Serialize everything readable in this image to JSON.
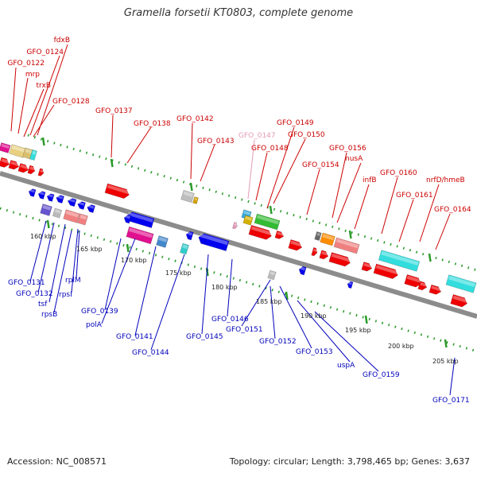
{
  "title": "Gramella forsetii KT0803, complete genome",
  "accession_label": "Accession: NC_008571",
  "topology_label": "Topology: circular; Length: 3,798,465 bp; Genes: 3,637",
  "colors": {
    "forward_label": "#cc0000",
    "reverse_label": "#0000bb",
    "backbone": "#8c8c8c",
    "ticks": "#229922"
  },
  "forward_genes": [
    "fdxB",
    "GFO_0124",
    "GFO_0122",
    "mrp",
    "trxB",
    "GFO_0128",
    "GFO_0137",
    "GFO_0138",
    "GFO_0142",
    "GFO_0143",
    "GFO_0147",
    "GFO_0149",
    "GFO_0148",
    "GFO_0150",
    "GFO_0156",
    "nusA",
    "GFO_0154",
    "infB",
    "GFO_0160",
    "nrfD/hmeB",
    "GFO_0161",
    "GFO_0164"
  ],
  "reverse_genes": [
    "GFO_0131",
    "GFO_0132",
    "tsf",
    "rpsB",
    "rpsI",
    "rplM",
    "GFO_0139",
    "polA",
    "GFO_0141",
    "GFO_0144",
    "GFO_0145",
    "GFO_0146",
    "GFO_0151",
    "GFO_0152",
    "GFO_0153",
    "uspA",
    "GFO_0159",
    "GFO_0171"
  ],
  "kbp_ticks": [
    "160 kbp",
    "165 kbp",
    "170 kbp",
    "175 kbp",
    "180 kbp",
    "185 kbp",
    "190 kbp",
    "195 kbp",
    "200 kbp",
    "205 kbp"
  ]
}
